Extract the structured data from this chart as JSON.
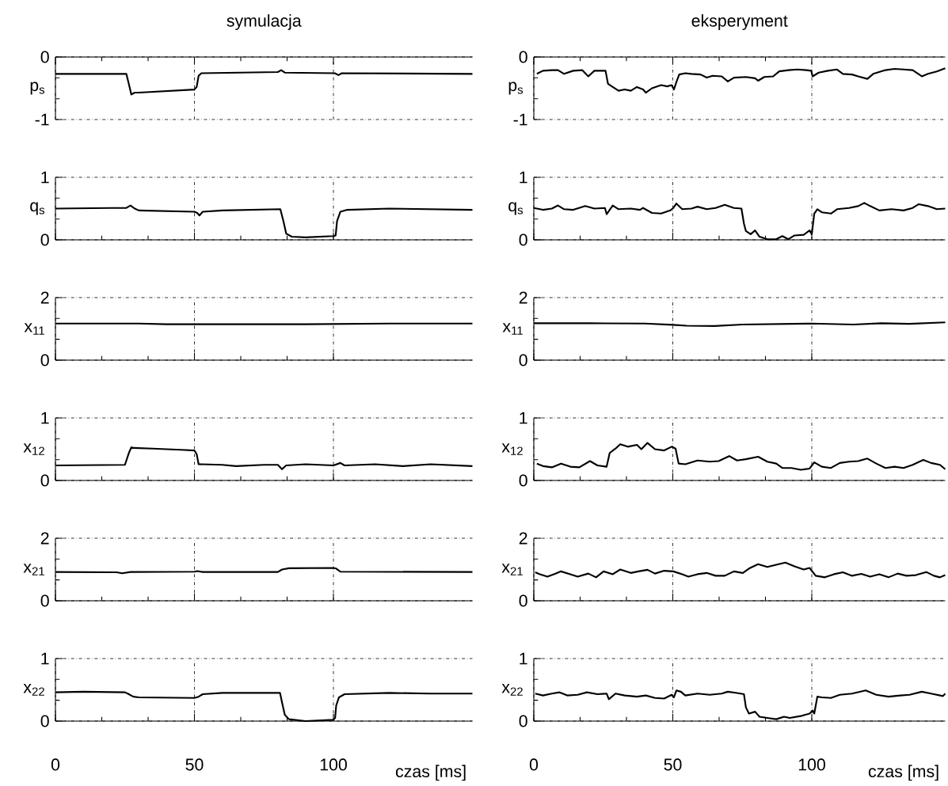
{
  "chart_data": [
    {
      "type": "line",
      "title": "symulacja",
      "ylabel": "p$_{s}$",
      "color": "#000000",
      "xlim": [
        0,
        150
      ],
      "xticks": [
        0,
        50,
        100
      ],
      "ylim": [
        -1,
        0
      ],
      "yticks": [
        -1,
        0
      ],
      "grid": true,
      "tick_labels": "y",
      "x": [
        0,
        25.5,
        26.5,
        27.3,
        28.5,
        30,
        50,
        50.8,
        51.5,
        52.5,
        80,
        81.2,
        82.5,
        100.5,
        101.8,
        103,
        150
      ],
      "values": [
        -0.27,
        -0.27,
        -0.45,
        -0.6,
        -0.57,
        -0.57,
        -0.52,
        -0.48,
        -0.3,
        -0.26,
        -0.24,
        -0.21,
        -0.25,
        -0.26,
        -0.29,
        -0.26,
        -0.27
      ]
    },
    {
      "type": "line",
      "title": "eksperyment",
      "ylabel": "p$_{s}$",
      "color": "#000000",
      "xlim": [
        0,
        148
      ],
      "xticks": [
        0,
        50,
        100
      ],
      "ylim": [
        -1,
        0
      ],
      "yticks": [
        -1,
        0
      ],
      "grid": true,
      "tick_labels": "y",
      "x": [
        1.1,
        3.3,
        6.5,
        8.7,
        10.9,
        14.2,
        17.4,
        19.6,
        21.8,
        25.8,
        26.7,
        28.4,
        30.5,
        32.7,
        34.9,
        37.1,
        39.3,
        40.3,
        42.5,
        45.8,
        48,
        49.6,
        50.4,
        51.3,
        52.3,
        54.5,
        56.7,
        60,
        62.2,
        64.3,
        67.6,
        69.8,
        72,
        76.3,
        79.6,
        80.7,
        82.9,
        86.1,
        88.3,
        91.6,
        94.9,
        98.1,
        99.8,
        100.3,
        102.5,
        105.8,
        109.1,
        111.2,
        114.5,
        116.7,
        120,
        122.1,
        126.5,
        129.8,
        133,
        136.3,
        139.6,
        141.8,
        145,
        148
      ],
      "values": [
        -0.27,
        -0.22,
        -0.21,
        -0.21,
        -0.27,
        -0.22,
        -0.21,
        -0.31,
        -0.22,
        -0.22,
        -0.43,
        -0.48,
        -0.54,
        -0.52,
        -0.54,
        -0.48,
        -0.52,
        -0.57,
        -0.5,
        -0.45,
        -0.47,
        -0.45,
        -0.52,
        -0.4,
        -0.28,
        -0.26,
        -0.27,
        -0.28,
        -0.33,
        -0.3,
        -0.31,
        -0.39,
        -0.33,
        -0.32,
        -0.34,
        -0.38,
        -0.32,
        -0.31,
        -0.23,
        -0.21,
        -0.2,
        -0.21,
        -0.22,
        -0.31,
        -0.25,
        -0.22,
        -0.2,
        -0.27,
        -0.28,
        -0.31,
        -0.35,
        -0.27,
        -0.21,
        -0.19,
        -0.2,
        -0.21,
        -0.31,
        -0.27,
        -0.23,
        -0.18
      ]
    },
    {
      "type": "line",
      "ylabel": "q$_{s}$",
      "color": "#000000",
      "xlim": [
        0,
        150
      ],
      "xticks": [
        0,
        50,
        100
      ],
      "ylim": [
        0,
        1
      ],
      "yticks": [
        0,
        1
      ],
      "grid": true,
      "tick_labels": "y",
      "x": [
        0,
        20,
        25.5,
        27,
        28.5,
        30,
        50,
        51,
        51.8,
        53,
        60,
        80.9,
        82,
        83,
        85,
        90,
        100,
        100.8,
        101.3,
        102.5,
        105,
        120,
        150
      ],
      "values": [
        0.5,
        0.51,
        0.51,
        0.55,
        0.5,
        0.47,
        0.45,
        0.43,
        0.39,
        0.45,
        0.47,
        0.49,
        0.3,
        0.1,
        0.05,
        0.04,
        0.06,
        0.07,
        0.3,
        0.45,
        0.48,
        0.5,
        0.48
      ]
    },
    {
      "type": "line",
      "ylabel": "q$_{s}$",
      "color": "#000000",
      "xlim": [
        0,
        148
      ],
      "xticks": [
        0,
        50,
        100
      ],
      "ylim": [
        0,
        1
      ],
      "yticks": [
        0,
        1
      ],
      "grid": true,
      "tick_labels": "y",
      "x": [
        0,
        3.3,
        6.5,
        8.7,
        10.9,
        14.2,
        18.5,
        21.8,
        25.6,
        26.2,
        28.4,
        30.5,
        34.9,
        38.2,
        39.3,
        42.5,
        45.8,
        49.1,
        50.2,
        51.3,
        53.4,
        56.7,
        58.9,
        62.2,
        65.4,
        68.7,
        72,
        74.7,
        75.6,
        76.3,
        78,
        79.6,
        81.2,
        84,
        87.2,
        89.4,
        91.6,
        93.8,
        97.1,
        99.2,
        100,
        100.9,
        102,
        103.6,
        106.9,
        109.1,
        113.4,
        116.7,
        118.9,
        121,
        124.3,
        128.7,
        133,
        136.3,
        138.5,
        141.8,
        145,
        148
      ],
      "values": [
        0.51,
        0.48,
        0.5,
        0.55,
        0.49,
        0.48,
        0.54,
        0.5,
        0.51,
        0.41,
        0.55,
        0.49,
        0.5,
        0.48,
        0.51,
        0.43,
        0.42,
        0.47,
        0.51,
        0.58,
        0.49,
        0.5,
        0.53,
        0.49,
        0.51,
        0.56,
        0.51,
        0.5,
        0.26,
        0.14,
        0.09,
        0.15,
        0.05,
        0.01,
        0.01,
        0.06,
        0.01,
        0.07,
        0.08,
        0.15,
        0.09,
        0.42,
        0.49,
        0.44,
        0.42,
        0.49,
        0.51,
        0.54,
        0.59,
        0.54,
        0.47,
        0.49,
        0.47,
        0.51,
        0.57,
        0.54,
        0.49,
        0.5
      ]
    },
    {
      "type": "line",
      "ylabel": "x$_{11}$",
      "color": "#000000",
      "xlim": [
        0,
        150
      ],
      "xticks": [
        0,
        50,
        100
      ],
      "ylim": [
        0,
        2
      ],
      "yticks": [
        0,
        2
      ],
      "grid": true,
      "tick_labels": "y",
      "x": [
        0,
        30,
        40,
        90,
        120,
        150
      ],
      "values": [
        1.17,
        1.17,
        1.15,
        1.15,
        1.17,
        1.17
      ]
    },
    {
      "type": "line",
      "ylabel": "x$_{11}$",
      "color": "#000000",
      "xlim": [
        0,
        148
      ],
      "xticks": [
        0,
        50,
        100
      ],
      "ylim": [
        0,
        2
      ],
      "yticks": [
        0,
        2
      ],
      "grid": true,
      "tick_labels": "y",
      "x": [
        0,
        20,
        40,
        50,
        55,
        65,
        75,
        100,
        115,
        125,
        135,
        148
      ],
      "values": [
        1.18,
        1.18,
        1.17,
        1.13,
        1.1,
        1.09,
        1.14,
        1.17,
        1.14,
        1.18,
        1.16,
        1.21
      ]
    },
    {
      "type": "line",
      "ylabel": "x$_{12}$",
      "color": "#000000",
      "xlim": [
        0,
        150
      ],
      "xticks": [
        0,
        50,
        100
      ],
      "ylim": [
        0,
        1
      ],
      "yticks": [
        0,
        1
      ],
      "grid": true,
      "tick_labels": "y",
      "x": [
        0,
        25,
        26.5,
        27.3,
        28,
        35,
        45,
        50,
        50.8,
        51.5,
        60,
        65,
        75,
        80,
        81.5,
        83,
        90,
        100,
        102.5,
        104,
        115,
        125,
        135,
        150
      ],
      "values": [
        0.24,
        0.25,
        0.45,
        0.53,
        0.52,
        0.51,
        0.49,
        0.48,
        0.42,
        0.26,
        0.25,
        0.23,
        0.25,
        0.25,
        0.18,
        0.24,
        0.26,
        0.24,
        0.28,
        0.24,
        0.26,
        0.23,
        0.26,
        0.23
      ]
    },
    {
      "type": "line",
      "ylabel": "x$_{12}$",
      "color": "#000000",
      "xlim": [
        0,
        148
      ],
      "xticks": [
        0,
        50,
        100
      ],
      "ylim": [
        0,
        1
      ],
      "yticks": [
        0,
        1
      ],
      "grid": true,
      "tick_labels": "y",
      "x": [
        1.1,
        3.3,
        6.5,
        9.8,
        13.1,
        16.4,
        20.2,
        22.9,
        26.2,
        27.3,
        29.4,
        31.1,
        33.8,
        37.1,
        38.7,
        40.9,
        43.6,
        46.9,
        49.6,
        51,
        52.1,
        54.5,
        58.9,
        63.3,
        66.5,
        70.3,
        73.1,
        76.3,
        80.7,
        84,
        87.2,
        89.4,
        92.7,
        96,
        99.2,
        100.9,
        103.6,
        106.9,
        110.1,
        113.4,
        116.7,
        120,
        123.2,
        126.5,
        129.8,
        133,
        136.3,
        140.1,
        142.9,
        146.1,
        148
      ],
      "values": [
        0.27,
        0.23,
        0.21,
        0.27,
        0.22,
        0.21,
        0.31,
        0.24,
        0.22,
        0.44,
        0.51,
        0.58,
        0.54,
        0.57,
        0.5,
        0.6,
        0.5,
        0.48,
        0.54,
        0.51,
        0.27,
        0.26,
        0.32,
        0.3,
        0.31,
        0.39,
        0.32,
        0.34,
        0.38,
        0.3,
        0.27,
        0.2,
        0.2,
        0.17,
        0.19,
        0.29,
        0.22,
        0.2,
        0.28,
        0.3,
        0.31,
        0.35,
        0.27,
        0.2,
        0.22,
        0.2,
        0.25,
        0.33,
        0.28,
        0.25,
        0.18
      ]
    },
    {
      "type": "line",
      "ylabel": "x$_{21}$",
      "color": "#000000",
      "xlim": [
        0,
        150
      ],
      "xticks": [
        0,
        50,
        100
      ],
      "ylim": [
        0,
        2
      ],
      "yticks": [
        0,
        2
      ],
      "grid": true,
      "tick_labels": "y",
      "x": [
        0,
        22,
        24,
        27,
        50,
        51,
        53,
        80,
        81.5,
        84,
        100,
        101,
        102.5,
        150
      ],
      "values": [
        0.92,
        0.91,
        0.88,
        0.92,
        0.93,
        0.95,
        0.92,
        0.92,
        1.0,
        1.04,
        1.05,
        1.03,
        0.93,
        0.92
      ]
    },
    {
      "type": "line",
      "ylabel": "x$_{21}$",
      "color": "#000000",
      "xlim": [
        0,
        148
      ],
      "xticks": [
        0,
        50,
        100
      ],
      "ylim": [
        0,
        2
      ],
      "yticks": [
        0,
        2
      ],
      "grid": true,
      "tick_labels": "y",
      "x": [
        0.5,
        2.2,
        4.9,
        7.6,
        9.8,
        13.1,
        15.8,
        19.6,
        22.4,
        25.1,
        28.4,
        31.1,
        34.9,
        37.6,
        40.9,
        43.6,
        46.9,
        50.2,
        53.4,
        55.6,
        58.9,
        62.2,
        65.4,
        68.7,
        72,
        75.2,
        77.4,
        80.7,
        84,
        87.2,
        90.5,
        93.8,
        97.1,
        99.2,
        101.4,
        104.7,
        108,
        111.2,
        114.5,
        117.8,
        121,
        124.3,
        127.6,
        130.9,
        134.1,
        137.4,
        141.2,
        143.9,
        146.1,
        148
      ],
      "values": [
        0.91,
        0.85,
        0.77,
        0.86,
        0.94,
        0.85,
        0.77,
        0.87,
        0.75,
        0.94,
        0.85,
        1.0,
        0.89,
        0.94,
        0.99,
        0.87,
        0.96,
        0.94,
        0.85,
        0.77,
        0.85,
        0.89,
        0.8,
        0.8,
        0.94,
        0.89,
        1.03,
        1.17,
        1.08,
        1.15,
        1.22,
        1.1,
        1.0,
        1.05,
        0.8,
        0.75,
        0.85,
        0.91,
        0.8,
        0.86,
        0.77,
        0.85,
        0.75,
        0.87,
        0.8,
        0.82,
        0.92,
        0.8,
        0.75,
        0.82
      ]
    },
    {
      "type": "line",
      "ylabel": "x$_{22}$",
      "xlabel": "czas [ms]",
      "color": "#000000",
      "xlim": [
        0,
        150
      ],
      "xticks": [
        0,
        50,
        100
      ],
      "ylim": [
        0,
        1
      ],
      "yticks": [
        0,
        1
      ],
      "grid": true,
      "x": [
        0,
        10,
        25,
        26,
        28,
        30,
        50,
        51.5,
        53,
        60,
        80.8,
        81.5,
        82.5,
        84,
        90,
        100,
        100.6,
        101,
        102,
        104,
        120,
        135,
        150
      ],
      "values": [
        0.46,
        0.47,
        0.46,
        0.44,
        0.39,
        0.38,
        0.37,
        0.39,
        0.43,
        0.45,
        0.45,
        0.3,
        0.1,
        0.03,
        0.0,
        0.02,
        0.05,
        0.25,
        0.38,
        0.43,
        0.45,
        0.44,
        0.44
      ]
    },
    {
      "type": "line",
      "ylabel": "x$_{22}$",
      "xlabel": "czas [ms]",
      "color": "#000000",
      "xlim": [
        0,
        148
      ],
      "xticks": [
        0,
        50,
        100
      ],
      "ylim": [
        0,
        1
      ],
      "yticks": [
        0,
        1
      ],
      "grid": true,
      "x": [
        0.5,
        3.3,
        6.5,
        9.3,
        12,
        15.8,
        19.1,
        22.9,
        26.2,
        27,
        29.4,
        32.7,
        37.1,
        40.3,
        43.6,
        46.9,
        49.6,
        50.4,
        51.3,
        52.9,
        54.5,
        58.9,
        63.3,
        67.6,
        69.8,
        73.1,
        75.6,
        76.3,
        77.4,
        79.6,
        81.2,
        84,
        87.2,
        90,
        92.1,
        96,
        99.2,
        100.3,
        100.9,
        102,
        103.6,
        106.9,
        110.1,
        114.5,
        119.4,
        123.2,
        127.6,
        131.9,
        135.2,
        139.6,
        142.9,
        147.2,
        148
      ],
      "values": [
        0.44,
        0.41,
        0.44,
        0.46,
        0.41,
        0.42,
        0.46,
        0.43,
        0.44,
        0.35,
        0.44,
        0.41,
        0.39,
        0.41,
        0.37,
        0.36,
        0.42,
        0.38,
        0.49,
        0.47,
        0.41,
        0.44,
        0.42,
        0.44,
        0.47,
        0.45,
        0.43,
        0.22,
        0.12,
        0.15,
        0.07,
        0.05,
        0.03,
        0.07,
        0.05,
        0.08,
        0.12,
        0.17,
        0.12,
        0.39,
        0.38,
        0.37,
        0.42,
        0.44,
        0.49,
        0.42,
        0.39,
        0.41,
        0.42,
        0.47,
        0.44,
        0.4,
        0.44
      ]
    }
  ]
}
